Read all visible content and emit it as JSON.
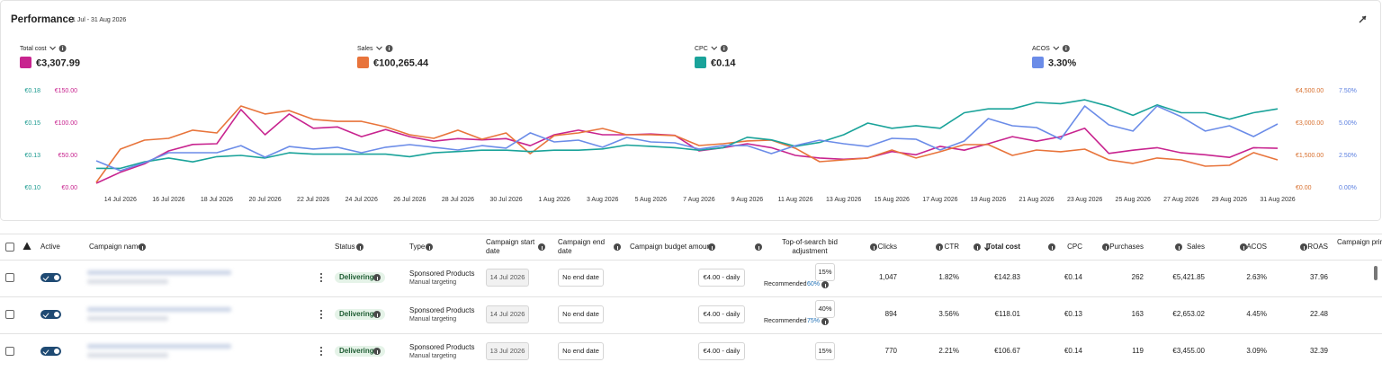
{
  "header": {
    "title": "Performance",
    "date_range": "1 Jul - 31 Aug 2026"
  },
  "chart_data": {
    "type": "line",
    "categories": [
      null,
      "14 Jul 2026",
      null,
      "16 Jul 2026",
      null,
      "18 Jul 2026",
      null,
      "20 Jul 2026",
      null,
      "22 Jul 2026",
      null,
      "24 Jul 2026",
      null,
      "26 Jul 2026",
      null,
      "28 Jul 2026",
      null,
      "30 Jul 2026",
      null,
      "1 Aug 2026",
      null,
      "3 Aug 2026",
      null,
      "5 Aug 2026",
      null,
      "7 Aug 2026",
      null,
      "9 Aug 2026",
      null,
      "11 Aug 2026",
      null,
      "13 Aug 2026",
      null,
      "15 Aug 2026",
      null,
      "17 Aug 2026",
      null,
      "19 Aug 2026",
      null,
      "21 Aug 2026",
      null,
      "23 Aug 2026",
      null,
      "25 Aug 2026",
      null,
      "27 Aug 2026",
      null,
      "29 Aug 2026",
      null,
      "31 Aug 2026"
    ],
    "axes": [
      {
        "id": "y3",
        "color": "#1a9a8f",
        "lim": [
          0.1,
          0.175
        ],
        "ticks": [
          {
            "value": 0.1,
            "label": "€0.10"
          },
          {
            "value": 0.125,
            "label": "€0.13"
          },
          {
            "value": 0.15,
            "label": "€0.15"
          },
          {
            "value": 0.175,
            "label": "€0.18"
          }
        ]
      },
      {
        "id": "y",
        "color": "#c8248f",
        "lim": [
          0,
          150
        ],
        "ticks": [
          {
            "value": 0,
            "label": "€0.00"
          },
          {
            "value": 50,
            "label": "€50.00"
          },
          {
            "value": 100,
            "label": "€100.00"
          },
          {
            "value": 150,
            "label": "€150.00"
          }
        ]
      },
      {
        "id": "y2",
        "color": "#d8702f",
        "lim": [
          0,
          4500
        ],
        "ticks": [
          {
            "value": 0,
            "label": "€0.00"
          },
          {
            "value": 1500,
            "label": "€1,500.00"
          },
          {
            "value": 3000,
            "label": "€3,000.00"
          },
          {
            "value": 4500,
            "label": "€4,500.00"
          }
        ]
      },
      {
        "id": "y4",
        "color": "#5b7fe0",
        "lim": [
          0,
          7.5
        ],
        "ticks": [
          {
            "value": 0,
            "label": "0.00%"
          },
          {
            "value": 2.5,
            "label": "2.50%"
          },
          {
            "value": 5,
            "label": "5.00%"
          },
          {
            "value": 7.5,
            "label": "7.50%"
          }
        ]
      }
    ],
    "series": [
      {
        "name": "Total cost",
        "total": "€3,307.99",
        "color": "#c8248f",
        "axis": "y",
        "values": [
          7,
          24,
          37,
          57,
          67,
          68,
          121,
          82,
          114,
          92,
          94,
          79,
          90,
          79,
          72,
          76,
          74,
          76,
          65,
          82,
          89,
          82,
          82,
          83,
          81,
          57,
          62,
          68,
          62,
          50,
          46,
          44,
          46,
          56,
          51,
          64,
          58,
          68,
          79,
          72,
          79,
          92,
          53,
          58,
          62,
          54,
          51,
          47,
          62,
          61
        ]
      },
      {
        "name": "Sales",
        "total": "€100,265.44",
        "color": "#e8743b",
        "axis": "y2",
        "values": [
          250,
          1790,
          2210,
          2290,
          2670,
          2540,
          3790,
          3420,
          3580,
          3170,
          3080,
          3080,
          2830,
          2460,
          2290,
          2670,
          2250,
          2540,
          1580,
          2420,
          2540,
          2750,
          2460,
          2460,
          2420,
          1960,
          2040,
          2170,
          2210,
          1830,
          1210,
          1290,
          1380,
          1750,
          1380,
          1670,
          2000,
          2000,
          1500,
          1750,
          1670,
          1790,
          1290,
          1130,
          1380,
          1290,
          1000,
          1040,
          1630,
          1290
        ]
      },
      {
        "name": "CPC",
        "total": "€0.14",
        "color": "#1aa39a",
        "axis": "y3",
        "values": [
          0.115,
          0.115,
          0.12,
          0.123,
          0.12,
          0.124,
          0.125,
          0.123,
          0.127,
          0.126,
          0.126,
          0.126,
          0.126,
          0.124,
          0.127,
          0.128,
          0.129,
          0.129,
          0.128,
          0.129,
          0.129,
          0.13,
          0.133,
          0.132,
          0.131,
          0.129,
          0.131,
          0.139,
          0.137,
          0.132,
          0.135,
          0.141,
          0.15,
          0.146,
          0.148,
          0.146,
          0.158,
          0.161,
          0.161,
          0.166,
          0.165,
          0.168,
          0.163,
          0.156,
          0.164,
          0.158,
          0.158,
          0.153,
          0.158,
          0.161
        ]
      },
      {
        "name": "ACOS",
        "total": "3.30%",
        "color": "#6b8ce8",
        "axis": "y4",
        "values": [
          2.08,
          1.32,
          1.94,
          2.71,
          2.71,
          2.71,
          3.26,
          2.36,
          3.19,
          2.99,
          3.13,
          2.71,
          3.13,
          3.33,
          3.13,
          2.92,
          3.26,
          3.06,
          4.24,
          3.54,
          3.68,
          3.13,
          3.89,
          3.54,
          3.47,
          2.99,
          3.26,
          3.26,
          2.64,
          3.26,
          3.68,
          3.4,
          3.19,
          3.82,
          3.75,
          2.92,
          3.61,
          5.35,
          4.79,
          4.65,
          3.75,
          6.32,
          4.86,
          4.38,
          6.32,
          5.49,
          4.38,
          4.79,
          3.96,
          4.93
        ]
      }
    ]
  },
  "table": {
    "columns": [
      "Active",
      "Campaign name",
      "Status",
      "Type",
      "Campaign start date",
      "Campaign end date",
      "Campaign budget amount",
      "Top-of-search bid adjustment",
      "Clicks",
      "CTR",
      "Total cost",
      "CPC",
      "Purchases",
      "Sales",
      "ACOS",
      "ROAS",
      "Campaign primary brand"
    ],
    "rows": [
      {
        "status": "Delivering",
        "type": "Sponsored Products",
        "targeting": "Manual targeting",
        "start_date": "14 Jul 2026",
        "end_date": "No end date",
        "budget": "€4.00 - daily",
        "bid_adjustment": "15%",
        "recommended_label": "Recommended",
        "recommended": "60%",
        "clicks": "1,047",
        "ctr": "1.82%",
        "total_cost": "€142.83",
        "cpc": "€0.14",
        "purchases": "262",
        "sales": "€5,421.85",
        "acos": "2.63%",
        "roas": "37.96"
      },
      {
        "status": "Delivering",
        "type": "Sponsored Products",
        "targeting": "Manual targeting",
        "start_date": "14 Jul 2026",
        "end_date": "No end date",
        "budget": "€4.00 - daily",
        "bid_adjustment": "40%",
        "recommended_label": "Recommended",
        "recommended": "75%",
        "clicks": "894",
        "ctr": "3.56%",
        "total_cost": "€118.01",
        "cpc": "€0.13",
        "purchases": "163",
        "sales": "€2,653.02",
        "acos": "4.45%",
        "roas": "22.48"
      },
      {
        "status": "Delivering",
        "type": "Sponsored Products",
        "targeting": "Manual targeting",
        "start_date": "13 Jul 2026",
        "end_date": "No end date",
        "budget": "€4.00 - daily",
        "bid_adjustment": "15%",
        "clicks": "770",
        "ctr": "2.21%",
        "total_cost": "€106.67",
        "cpc": "€0.14",
        "purchases": "119",
        "sales": "€3,455.00",
        "acos": "3.09%",
        "roas": "32.39"
      }
    ]
  }
}
